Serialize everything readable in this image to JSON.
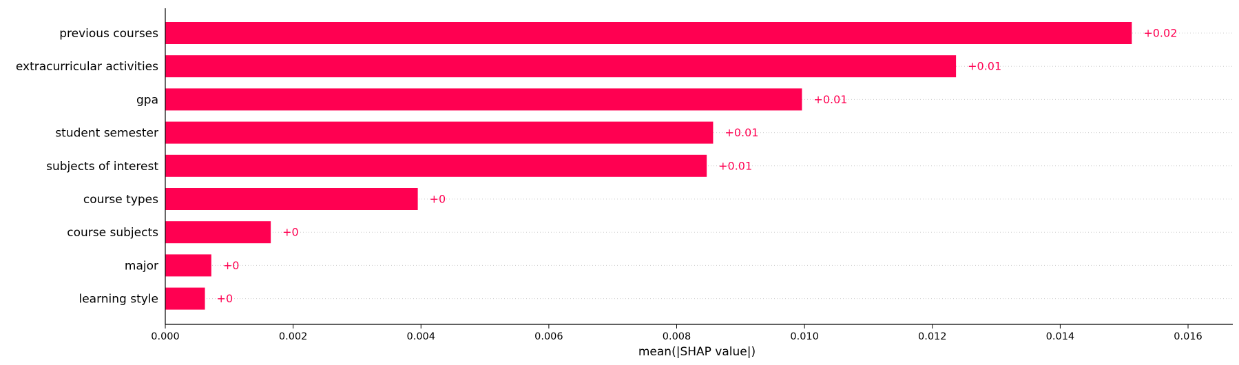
{
  "chart_data": {
    "type": "bar",
    "orientation": "horizontal",
    "categories": [
      "previous courses",
      "extracurricular activities",
      "gpa",
      "student semester",
      "subjects of interest",
      "course types",
      "course subjects",
      "major",
      "learning style"
    ],
    "values": [
      0.01512,
      0.01237,
      0.00996,
      0.00857,
      0.00847,
      0.00395,
      0.00165,
      0.00072,
      0.00062
    ],
    "value_labels": [
      "+0.02",
      "+0.01",
      "+0.01",
      "+0.01",
      "+0.01",
      "+0",
      "+0",
      "+0",
      "+0"
    ],
    "xlabel": "mean(|SHAP value|)",
    "ylabel": "",
    "xlim": [
      0,
      0.0167
    ],
    "xticks": [
      0.0,
      0.002,
      0.004,
      0.006,
      0.008,
      0.01,
      0.012,
      0.014,
      0.016
    ],
    "xtick_labels": [
      "0.000",
      "0.002",
      "0.004",
      "0.006",
      "0.008",
      "0.010",
      "0.012",
      "0.014",
      "0.016"
    ],
    "grid": "dotted horizontal guide per row",
    "colors": {
      "bar": "#ff0051",
      "label": "#ff0051",
      "axis": "#000000",
      "grid": "#cccccc"
    }
  }
}
